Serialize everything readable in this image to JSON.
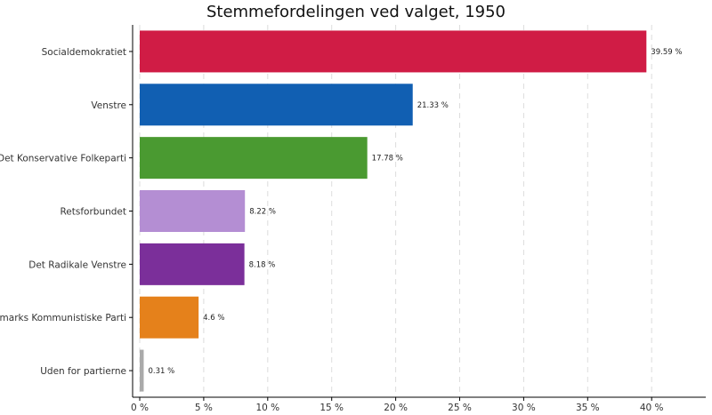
{
  "chart_data": {
    "type": "bar",
    "orientation": "horizontal",
    "title": "Stemmefordelingen ved valget, 1950",
    "xlabel": "",
    "ylabel": "",
    "categories": [
      "Socialdemokratiet",
      "Venstre",
      "Det Konservative Folkeparti",
      "Retsforbundet",
      "Det Radikale Venstre",
      "Danmarks Kommunistiske Parti",
      "Uden for partierne"
    ],
    "values": [
      39.59,
      21.33,
      17.78,
      8.22,
      8.18,
      4.6,
      0.31
    ],
    "data_labels": [
      "39.59 %",
      "21.33 %",
      "17.78 %",
      "8.22 %",
      "8.18 %",
      "4.6 %",
      "0.31 %"
    ],
    "colors": [
      "#d01c45",
      "#115fb2",
      "#4a9a31",
      "#b48ed3",
      "#7b2f9a",
      "#e5811b",
      "#aaaaaa"
    ],
    "xlim": [
      0,
      45
    ],
    "x_ticks": [
      0,
      5,
      10,
      15,
      20,
      25,
      30,
      35,
      40
    ],
    "x_tick_labels": [
      "0 %",
      "5 %",
      "10 %",
      "15 %",
      "20 %",
      "25 %",
      "30 %",
      "35 %",
      "40 %"
    ],
    "grid": "vertical-dashed",
    "legend": "none"
  }
}
